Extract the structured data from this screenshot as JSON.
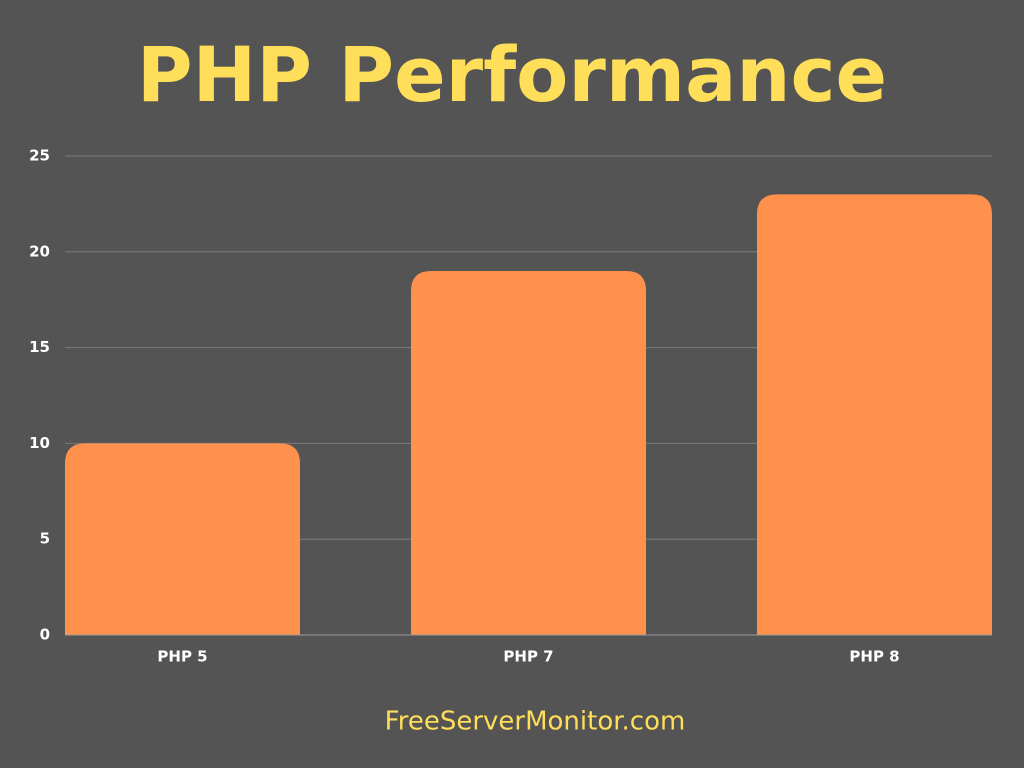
{
  "chart_data": {
    "type": "bar",
    "title": "PHP Performance",
    "categories": [
      "PHP 5",
      "PHP 7",
      "PHP 8"
    ],
    "values": [
      10,
      19,
      23
    ],
    "color": "#ff914d",
    "ylim": [
      0,
      25
    ],
    "yticks": [
      0,
      5,
      10,
      15,
      20,
      25
    ],
    "grid": true,
    "footer": "FreeServerMonitor.com"
  }
}
